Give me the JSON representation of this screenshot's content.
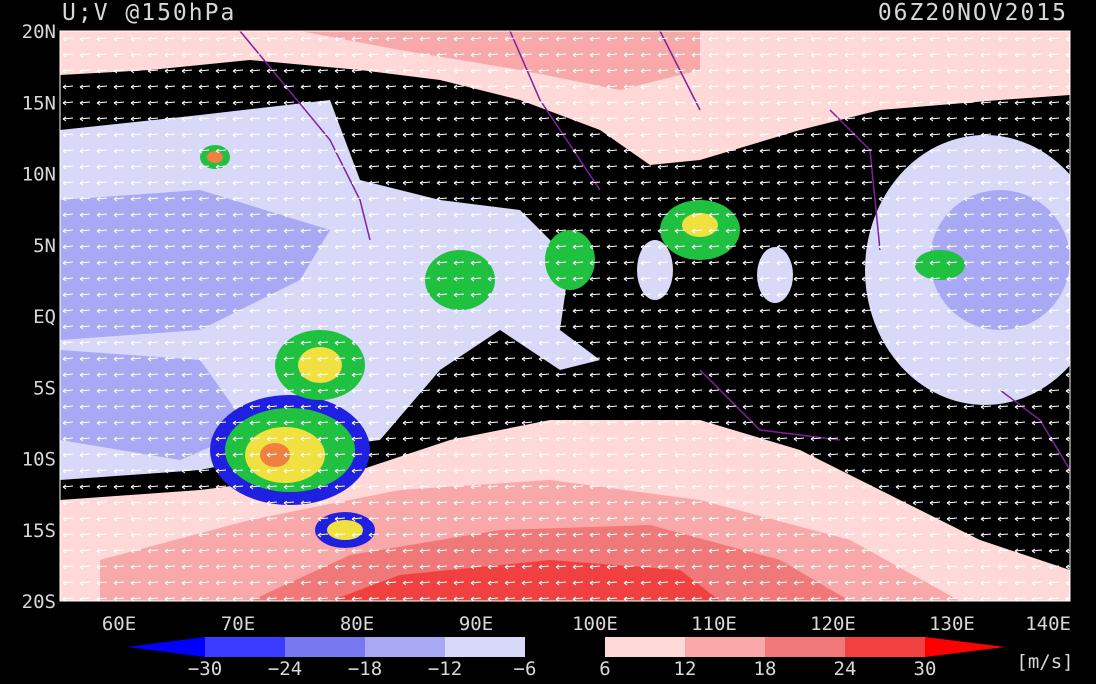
{
  "header": {
    "title": "U;V @150hPa",
    "time": "06Z20NOV2015"
  },
  "map": {
    "lat_labels": [
      "20N",
      "15N",
      "10N",
      "5N",
      "EQ",
      "5S",
      "10S",
      "15S",
      "20S"
    ],
    "lon_labels": [
      "60E",
      "70E",
      "80E",
      "90E",
      "100E",
      "110E",
      "120E",
      "130E",
      "140E"
    ]
  },
  "colorbar": {
    "labels": [
      "−30",
      "−24",
      "−18",
      "−12",
      "−6",
      "6",
      "12",
      "18",
      "24",
      "30"
    ],
    "unit": "[m/s]"
  }
}
